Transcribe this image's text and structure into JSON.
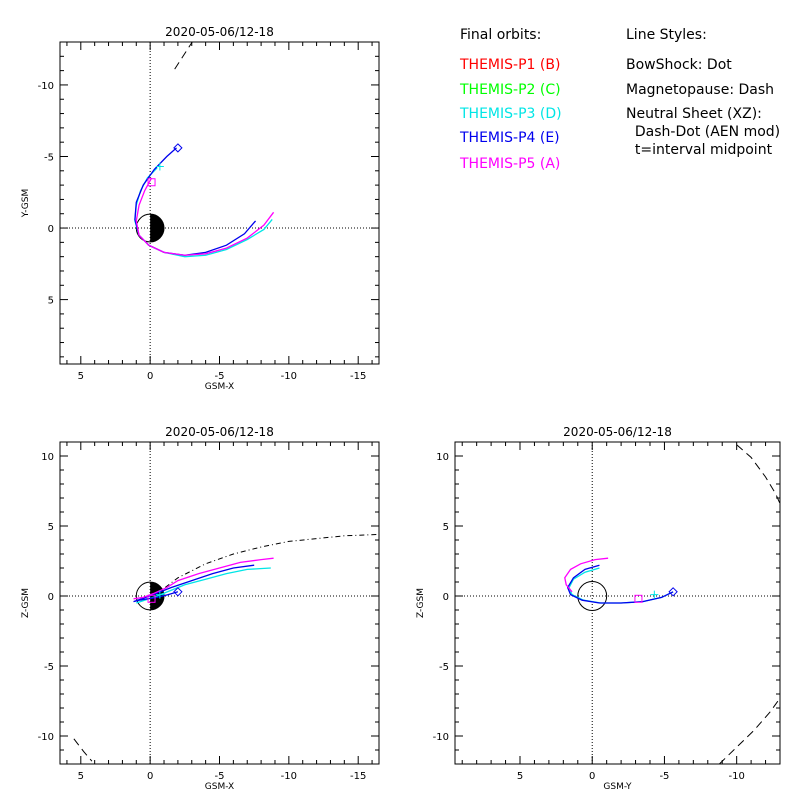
{
  "colors": {
    "P1": "#ff0000",
    "P2": "#00ff00",
    "P3": "#00e6e6",
    "P4": "#0000ee",
    "P5": "#ff00ff",
    "axis": "#000000"
  },
  "legend": {
    "orbits_title": "Final orbits:",
    "orbits": [
      {
        "label": "THEMIS-P1 (B)",
        "color": "#ff0000"
      },
      {
        "label": "THEMIS-P2 (C)",
        "color": "#00ff00"
      },
      {
        "label": "THEMIS-P3 (D)",
        "color": "#00e6e6"
      },
      {
        "label": "THEMIS-P4 (E)",
        "color": "#0000ee"
      },
      {
        "label": "THEMIS-P5 (A)",
        "color": "#ff00ff"
      }
    ],
    "styles_title": "Line Styles:",
    "styles": [
      "BowShock: Dot",
      "Magnetopause: Dash",
      "Neutral Sheet (XZ):",
      "  Dash-Dot (AEN mod)",
      "  t=interval midpoint"
    ]
  },
  "chart_data": [
    {
      "type": "line",
      "title": "2020-05-06/12-18",
      "xlabel": "GSM-X",
      "ylabel": "Y-GSM",
      "xlim": [
        6.5,
        -16.5
      ],
      "ylim": [
        9.5,
        -13
      ],
      "xticks": [
        5,
        0,
        -5,
        -10,
        -15
      ],
      "xtick_labels": [
        "5",
        "0",
        "-5",
        "-10",
        "-15"
      ],
      "yticks": [
        5,
        0,
        -5,
        -10
      ],
      "ytick_labels": [
        "5",
        "0",
        "-5",
        "-10"
      ],
      "grid": false,
      "earth": "day-night",
      "boundaries": [
        {
          "name": "magnetopause",
          "style": "dash",
          "x": [
            -3.1,
            -2.3,
            -1.7
          ],
          "y": [
            -13.1,
            -11.9,
            -11.0
          ]
        }
      ],
      "series": [
        {
          "name": "THEMIS-P1 (B)",
          "color": "#ff0000",
          "x": [],
          "y": []
        },
        {
          "name": "THEMIS-P2 (C)",
          "color": "#00ff00",
          "x": [],
          "y": []
        },
        {
          "name": "THEMIS-P3 (D)",
          "color": "#00e6e6",
          "x": [
            -0.5,
            0.2,
            0.7,
            1.0,
            1.1,
            0.8,
            0.1,
            -1.0,
            -2.5,
            -4.0,
            -5.5,
            -7.0,
            -8.2,
            -8.8
          ],
          "y": [
            -4.2,
            -3.5,
            -2.6,
            -1.6,
            -0.5,
            0.5,
            1.2,
            1.7,
            2.0,
            1.9,
            1.5,
            0.8,
            0.1,
            -0.6
          ]
        },
        {
          "name": "THEMIS-P4 (E)",
          "color": "#0000ee",
          "x": [
            -1.9,
            -1.2,
            -0.3,
            0.5,
            1.0,
            1.1,
            0.8,
            0.1,
            -1.0,
            -2.5,
            -4.0,
            -5.5,
            -6.8,
            -7.6
          ],
          "y": [
            -5.6,
            -5.0,
            -4.1,
            -3.0,
            -1.8,
            -0.6,
            0.5,
            1.2,
            1.7,
            1.9,
            1.7,
            1.2,
            0.4,
            -0.5
          ]
        },
        {
          "name": "THEMIS-P5 (A)",
          "color": "#ff00ff",
          "x": [
            -0.1,
            0.4,
            0.8,
            1.0,
            0.8,
            0.1,
            -1.0,
            -2.5,
            -4.0,
            -5.5,
            -7.0,
            -8.2,
            -8.9
          ],
          "y": [
            -3.5,
            -2.6,
            -1.6,
            -0.5,
            0.5,
            1.2,
            1.7,
            1.9,
            1.8,
            1.4,
            0.7,
            -0.2,
            -1.1
          ]
        }
      ],
      "markers": [
        {
          "shape": "diamond",
          "color": "#0000ee",
          "x": -2.0,
          "y": -5.6
        },
        {
          "shape": "square",
          "color": "#ff00ff",
          "x": -0.1,
          "y": -3.2
        },
        {
          "shape": "plus",
          "color": "#00e6e6",
          "x": -0.7,
          "y": -4.3
        }
      ]
    },
    {
      "type": "line",
      "title": "2020-05-06/12-18",
      "xlabel": "GSM-X",
      "ylabel": "Z-GSM",
      "xlim": [
        6.5,
        -16.5
      ],
      "ylim": [
        -12,
        11
      ],
      "xticks": [
        5,
        0,
        -5,
        -10,
        -15
      ],
      "xtick_labels": [
        "5",
        "0",
        "-5",
        "-10",
        "-15"
      ],
      "yticks": [
        10,
        5,
        0,
        -5,
        -10
      ],
      "ytick_labels": [
        "10",
        "5",
        "0",
        "-5",
        "-10"
      ],
      "grid": false,
      "earth": "day-night",
      "boundaries": [
        {
          "name": "magnetopause",
          "style": "dash",
          "x": [
            5.5,
            4.8,
            4.2
          ],
          "y": [
            -10.2,
            -11.1,
            -11.8
          ]
        },
        {
          "name": "neutral sheet",
          "style": "dashdot",
          "x": [
            -0.4,
            -2,
            -4,
            -6,
            -8,
            -10,
            -12,
            -14,
            -16.5
          ],
          "y": [
            0.1,
            1.3,
            2.3,
            3.0,
            3.5,
            3.9,
            4.1,
            4.3,
            4.4
          ]
        }
      ],
      "series": [
        {
          "name": "THEMIS-P1 (B)",
          "color": "#ff0000",
          "x": [],
          "y": []
        },
        {
          "name": "THEMIS-P2 (C)",
          "color": "#00ff00",
          "x": [],
          "y": []
        },
        {
          "name": "THEMIS-P3 (D)",
          "color": "#00e6e6",
          "x": [
            1.0,
            0.4,
            -0.5,
            -1.5,
            -2.5,
            -4.0,
            -5.5,
            -7.0,
            -8.7
          ],
          "y": [
            -0.5,
            -0.3,
            0.0,
            0.4,
            0.8,
            1.2,
            1.6,
            1.9,
            2.0
          ]
        },
        {
          "name": "THEMIS-P4 (E)",
          "color": "#0000ee",
          "x": [
            -2.0,
            -1.3,
            -0.5,
            0.2,
            0.8,
            1.2,
            0.6,
            -0.5,
            -1.5,
            -3.0,
            -4.5,
            -6.0,
            -7.5
          ],
          "y": [
            0.3,
            0.1,
            -0.1,
            -0.2,
            -0.3,
            -0.4,
            -0.2,
            0.2,
            0.6,
            1.1,
            1.6,
            2.0,
            2.2
          ]
        },
        {
          "name": "THEMIS-P5 (A)",
          "color": "#ff00ff",
          "x": [
            1.2,
            0.5,
            -0.3,
            -1.2,
            -2.0,
            -3.5,
            -5.0,
            -6.5,
            -8.0,
            -8.9
          ],
          "y": [
            -0.2,
            -0.1,
            0.2,
            0.6,
            1.1,
            1.6,
            2.0,
            2.4,
            2.6,
            2.7
          ]
        }
      ],
      "markers": [
        {
          "shape": "diamond",
          "color": "#0000ee",
          "x": -2.0,
          "y": 0.3
        },
        {
          "shape": "square",
          "color": "#ff00ff",
          "x": -0.1,
          "y": -0.2
        },
        {
          "shape": "plus",
          "color": "#00e6e6",
          "x": -0.7,
          "y": 0.1
        }
      ]
    },
    {
      "type": "line",
      "title": "2020-05-06/12-18",
      "xlabel": "GSM-Y",
      "ylabel": "Z-GSM",
      "xlim": [
        9.5,
        -13
      ],
      "ylim": [
        -12,
        11
      ],
      "xticks": [
        5,
        0,
        -5,
        -10
      ],
      "xtick_labels": [
        "5",
        "0",
        "-5",
        "-10"
      ],
      "yticks": [
        10,
        5,
        0,
        -5,
        -10
      ],
      "ytick_labels": [
        "10",
        "5",
        "0",
        "-5",
        "-10"
      ],
      "grid": false,
      "earth": "outline",
      "boundaries": [
        {
          "name": "magnetopause",
          "style": "dash",
          "x": [
            -10.0,
            -11.0,
            -12.0,
            -12.7,
            -13.0
          ],
          "y": [
            10.8,
            9.9,
            8.5,
            7.3,
            6.6
          ]
        },
        {
          "name": "magnetopause",
          "style": "dash",
          "x": [
            -8.8,
            -10.0,
            -11.2,
            -12.3,
            -13.0
          ],
          "y": [
            -12.0,
            -10.8,
            -9.6,
            -8.3,
            -7.3
          ]
        }
      ],
      "series": [
        {
          "name": "THEMIS-P1 (B)",
          "color": "#ff0000",
          "x": [],
          "y": []
        },
        {
          "name": "THEMIS-P2 (C)",
          "color": "#00ff00",
          "x": [],
          "y": []
        },
        {
          "name": "THEMIS-P3 (D)",
          "color": "#00e6e6",
          "x": [
            -0.5,
            0.5,
            1.3,
            1.6,
            1.4,
            0.6,
            -0.6,
            -2.0,
            -3.5,
            -4.8,
            -5.6
          ],
          "y": [
            2.0,
            1.7,
            1.2,
            0.6,
            0.1,
            -0.3,
            -0.5,
            -0.5,
            -0.4,
            -0.1,
            0.3
          ]
        },
        {
          "name": "THEMIS-P4 (E)",
          "color": "#0000ee",
          "x": [
            -0.5,
            0.5,
            1.3,
            1.7,
            1.5,
            0.7,
            -0.5,
            -2.0,
            -3.5,
            -4.8,
            -5.6
          ],
          "y": [
            2.2,
            1.9,
            1.3,
            0.6,
            0.1,
            -0.3,
            -0.5,
            -0.5,
            -0.4,
            -0.1,
            0.3
          ]
        },
        {
          "name": "THEMIS-P5 (A)",
          "color": "#ff00ff",
          "x": [
            -1.1,
            -0.2,
            0.8,
            1.5,
            1.9,
            1.8,
            1.4
          ],
          "y": [
            2.7,
            2.6,
            2.3,
            1.9,
            1.3,
            0.8,
            0.3
          ]
        }
      ],
      "markers": [
        {
          "shape": "diamond",
          "color": "#0000ee",
          "x": -5.6,
          "y": 0.3
        },
        {
          "shape": "square",
          "color": "#ff00ff",
          "x": -3.2,
          "y": -0.2
        },
        {
          "shape": "plus",
          "color": "#00e6e6",
          "x": -4.3,
          "y": 0.1
        }
      ]
    }
  ]
}
